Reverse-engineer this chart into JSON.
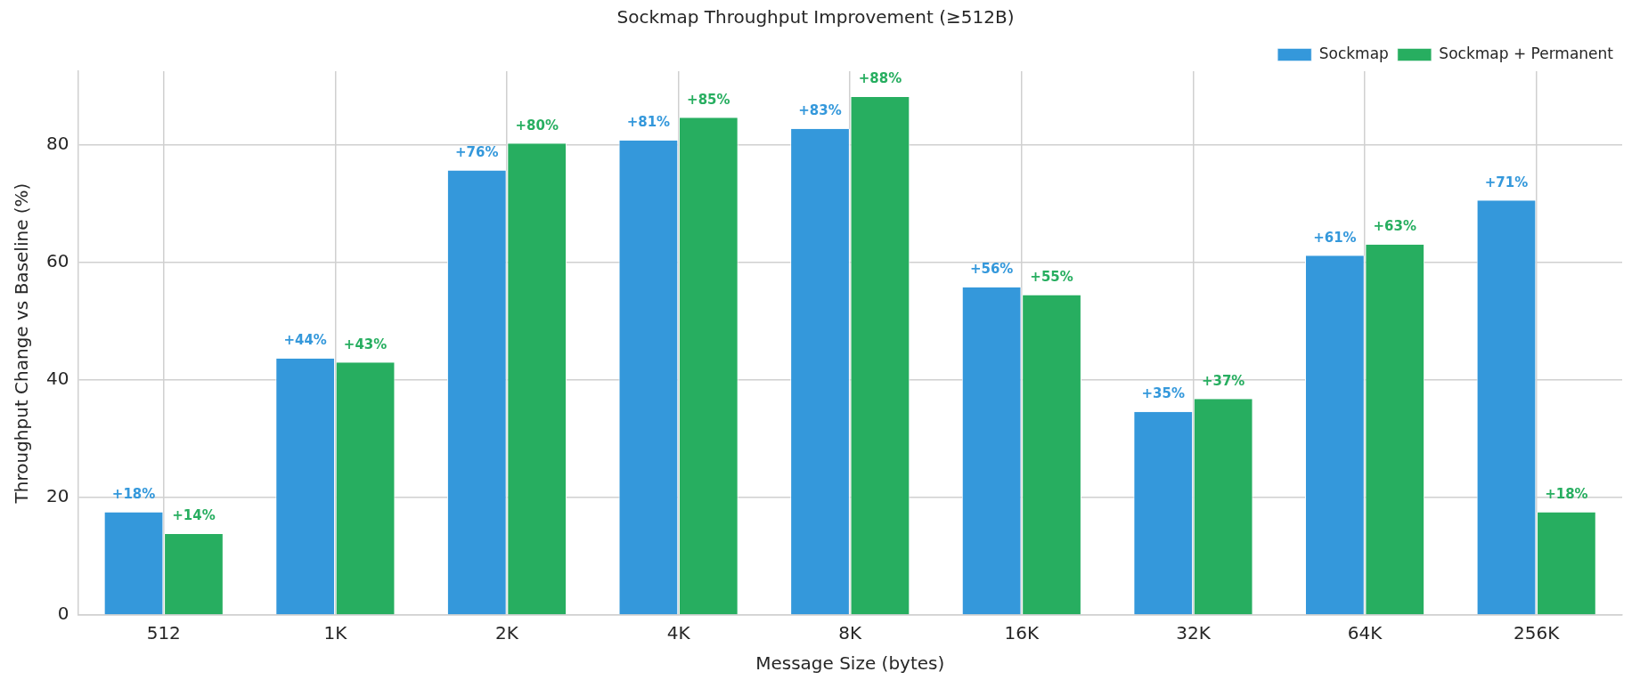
{
  "chart_data": {
    "type": "bar",
    "title": "Sockmap Throughput Improvement (≥512B)",
    "xlabel": "Message Size (bytes)",
    "ylabel": "Throughput Change vs Baseline (%)",
    "categories": [
      "512",
      "1K",
      "2K",
      "4K",
      "8K",
      "16K",
      "32K",
      "64K",
      "256K"
    ],
    "series": [
      {
        "name": "Sockmap",
        "color": "#3498db",
        "values": [
          17.5,
          43.7,
          75.7,
          80.8,
          82.8,
          55.8,
          34.6,
          61.2,
          70.6
        ],
        "value_labels": [
          "+18%",
          "+44%",
          "+76%",
          "+81%",
          "+83%",
          "+56%",
          "+35%",
          "+61%",
          "+71%"
        ]
      },
      {
        "name": "Sockmap + Permanent",
        "color": "#27ae60",
        "values": [
          13.8,
          43.0,
          80.3,
          84.7,
          88.2,
          54.5,
          36.8,
          63.1,
          17.5
        ],
        "value_labels": [
          "+14%",
          "+43%",
          "+80%",
          "+85%",
          "+88%",
          "+55%",
          "+37%",
          "+63%",
          "+18%"
        ]
      }
    ],
    "ylim": [
      0,
      92.6
    ],
    "yticks": [
      0,
      20,
      40,
      60,
      80
    ],
    "grid": true,
    "legend": "top right"
  }
}
